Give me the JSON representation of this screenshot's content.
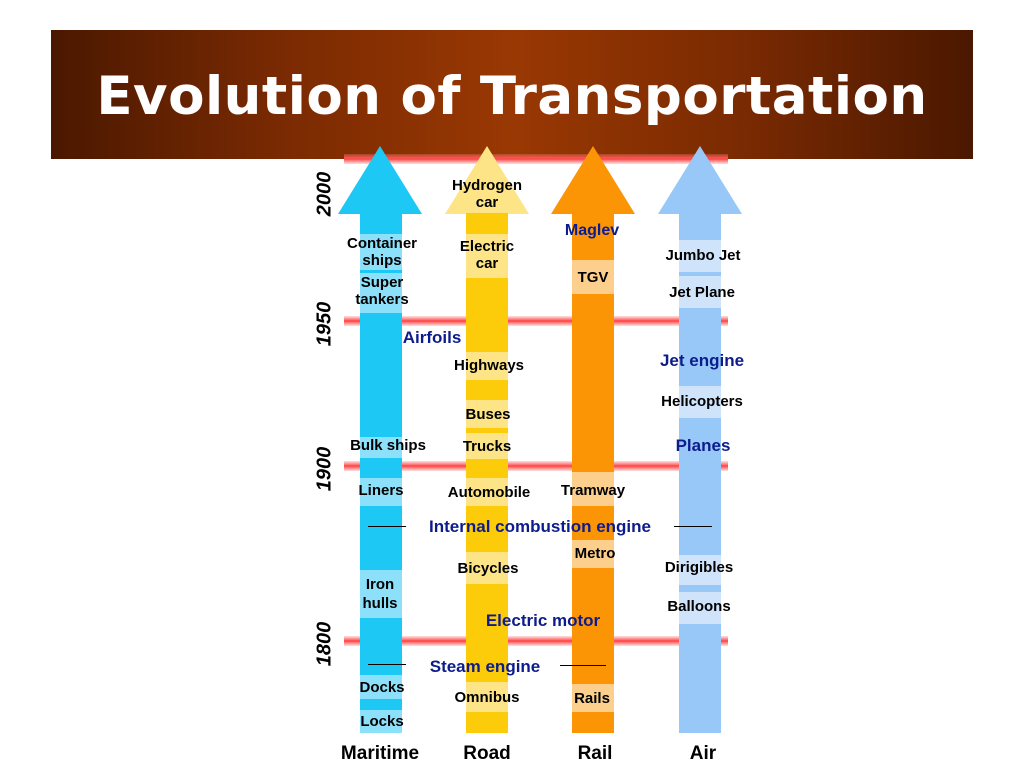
{
  "title": "Evolution of Transportation",
  "years": [
    "2000",
    "1950",
    "1900",
    "1800"
  ],
  "categories": [
    "Maritime",
    "Road",
    "Rail",
    "Air"
  ],
  "colors": {
    "maritime": "#1ec8f5",
    "road": "#fccc0a",
    "rail": "#fb9505",
    "air": "#98c8f8",
    "innovation_text": "#0d1c8c",
    "banner": "#993803"
  },
  "maritime": {
    "container_ships": "Container\nships",
    "super_tankers": "Super\ntankers",
    "bulk_ships": "Bulk ships",
    "liners": "Liners",
    "iron_hulls": "Iron\nhulls",
    "docks": "Docks",
    "locks": "Locks"
  },
  "road": {
    "hydrogen_car": "Hydrogen\ncar",
    "electric_car": "Electric\ncar",
    "highways": "Highways",
    "buses": "Buses",
    "trucks": "Trucks",
    "automobile": "Automobile",
    "bicycles": "Bicycles",
    "omnibus": "Omnibus"
  },
  "rail": {
    "maglev": "Maglev",
    "tgv": "TGV",
    "tramway": "Tramway",
    "metro": "Metro",
    "rails": "Rails"
  },
  "air": {
    "jumbo_jet": "Jumbo Jet",
    "jet_plane": "Jet Plane",
    "jet_engine": "Jet engine",
    "helicopters": "Helicopters",
    "planes": "Planes",
    "dirigibles": "Dirigibles",
    "balloons": "Balloons"
  },
  "innovations": {
    "airfoils": "Airfoils",
    "internal_combustion_engine": "Internal combustion engine",
    "electric_motor": "Electric motor",
    "steam_engine": "Steam engine"
  }
}
